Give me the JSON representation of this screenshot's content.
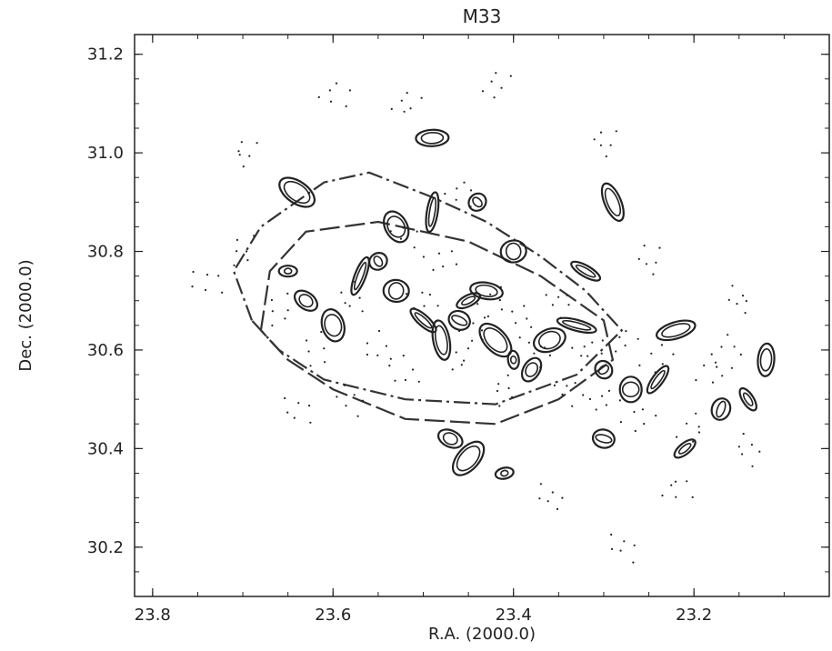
{
  "chart_data": {
    "type": "scatter",
    "title": "M33",
    "xlabel": "R.A. (2000.0)",
    "ylabel": "Dec. (2000.0)",
    "xlim": [
      23.82,
      23.05
    ],
    "ylim": [
      30.1,
      31.24
    ],
    "x_axis_reversed": true,
    "grid": false,
    "x_ticks": [
      23.8,
      23.6,
      23.4,
      23.2
    ],
    "x_tick_labels": [
      "23.8",
      "23.6",
      "23.4",
      "23.2"
    ],
    "y_ticks": [
      30.2,
      30.4,
      30.6,
      30.8,
      31.0,
      31.2
    ],
    "y_tick_labels": [
      "30.2",
      "30.4",
      "30.6",
      "30.8",
      "31.0",
      "31.2"
    ],
    "series": [
      {
        "style": "dash-dot outline",
        "points": [
          [
            23.69,
            30.66
          ],
          [
            23.71,
            30.76
          ],
          [
            23.68,
            30.85
          ],
          [
            23.61,
            30.94
          ],
          [
            23.56,
            30.96
          ],
          [
            23.49,
            30.91
          ],
          [
            23.43,
            30.86
          ],
          [
            23.37,
            30.79
          ],
          [
            23.32,
            30.72
          ],
          [
            23.28,
            30.64
          ],
          [
            23.33,
            30.55
          ],
          [
            23.42,
            30.49
          ],
          [
            23.52,
            30.5
          ],
          [
            23.61,
            30.54
          ],
          [
            23.66,
            30.6
          ],
          [
            23.69,
            30.66
          ]
        ]
      },
      {
        "style": "long-dash outline",
        "points": [
          [
            23.68,
            30.64
          ],
          [
            23.67,
            30.76
          ],
          [
            23.63,
            30.84
          ],
          [
            23.55,
            30.86
          ],
          [
            23.45,
            30.82
          ],
          [
            23.37,
            30.75
          ],
          [
            23.3,
            30.66
          ],
          [
            23.29,
            30.58
          ],
          [
            23.35,
            30.5
          ],
          [
            23.42,
            30.45
          ],
          [
            23.52,
            30.46
          ],
          [
            23.6,
            30.52
          ],
          [
            23.65,
            30.58
          ],
          [
            23.68,
            30.64
          ]
        ]
      },
      {
        "style": "solid contours",
        "points": [
          [
            23.65,
            30.76
          ],
          [
            23.63,
            30.7
          ],
          [
            23.6,
            30.65
          ],
          [
            23.57,
            30.75
          ],
          [
            23.55,
            30.78
          ],
          [
            23.53,
            30.72
          ],
          [
            23.5,
            30.66
          ],
          [
            23.48,
            30.62
          ],
          [
            23.46,
            30.66
          ],
          [
            23.45,
            30.7
          ],
          [
            23.43,
            30.72
          ],
          [
            23.42,
            30.62
          ],
          [
            23.4,
            30.58
          ],
          [
            23.38,
            30.56
          ],
          [
            23.36,
            30.62
          ],
          [
            23.33,
            30.65
          ],
          [
            23.3,
            30.56
          ],
          [
            23.27,
            30.52
          ],
          [
            23.24,
            30.54
          ],
          [
            23.22,
            30.64
          ],
          [
            23.17,
            30.48
          ],
          [
            23.14,
            30.5
          ],
          [
            23.12,
            30.58
          ],
          [
            23.45,
            30.38
          ],
          [
            23.41,
            30.35
          ],
          [
            23.47,
            30.42
          ],
          [
            23.53,
            30.85
          ],
          [
            23.49,
            30.88
          ],
          [
            23.44,
            30.9
          ],
          [
            23.4,
            30.8
          ],
          [
            23.32,
            30.76
          ],
          [
            23.29,
            30.9
          ],
          [
            23.3,
            30.42
          ],
          [
            23.21,
            30.4
          ],
          [
            23.49,
            31.03
          ],
          [
            23.64,
            30.92
          ]
        ]
      },
      {
        "style": "stippled dots",
        "points": [
          [
            23.7,
            30.8
          ],
          [
            23.66,
            30.68
          ],
          [
            23.62,
            30.6
          ],
          [
            23.58,
            30.7
          ],
          [
            23.55,
            30.6
          ],
          [
            23.52,
            30.55
          ],
          [
            23.5,
            30.7
          ],
          [
            23.48,
            30.78
          ],
          [
            23.46,
            30.58
          ],
          [
            23.44,
            30.64
          ],
          [
            23.42,
            30.7
          ],
          [
            23.41,
            30.52
          ],
          [
            23.39,
            30.66
          ],
          [
            23.37,
            30.6
          ],
          [
            23.35,
            30.7
          ],
          [
            23.34,
            30.52
          ],
          [
            23.32,
            30.6
          ],
          [
            23.3,
            30.5
          ],
          [
            23.28,
            30.62
          ],
          [
            23.26,
            30.46
          ],
          [
            23.24,
            30.58
          ],
          [
            23.2,
            30.44
          ],
          [
            23.18,
            30.56
          ],
          [
            23.16,
            30.6
          ],
          [
            23.14,
            30.4
          ],
          [
            23.58,
            30.5
          ],
          [
            23.52,
            30.84
          ],
          [
            23.46,
            30.92
          ],
          [
            23.6,
            31.12
          ],
          [
            23.52,
            31.1
          ],
          [
            23.42,
            31.14
          ],
          [
            23.7,
            31.0
          ],
          [
            23.3,
            31.02
          ],
          [
            23.25,
            30.78
          ],
          [
            23.15,
            30.7
          ],
          [
            23.36,
            30.3
          ],
          [
            23.28,
            30.2
          ],
          [
            23.64,
            30.48
          ],
          [
            23.74,
            30.74
          ],
          [
            23.22,
            30.32
          ]
        ]
      }
    ]
  }
}
